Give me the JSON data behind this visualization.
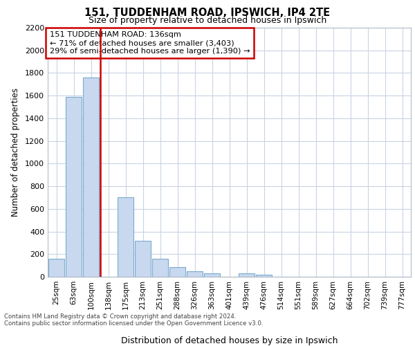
{
  "title1": "151, TUDDENHAM ROAD, IPSWICH, IP4 2TE",
  "title2": "Size of property relative to detached houses in Ipswich",
  "xlabel": "Distribution of detached houses by size in Ipswich",
  "ylabel": "Number of detached properties",
  "categories": [
    "25sqm",
    "63sqm",
    "100sqm",
    "138sqm",
    "175sqm",
    "213sqm",
    "251sqm",
    "288sqm",
    "326sqm",
    "363sqm",
    "401sqm",
    "439sqm",
    "476sqm",
    "514sqm",
    "551sqm",
    "589sqm",
    "627sqm",
    "664sqm",
    "702sqm",
    "739sqm",
    "777sqm"
  ],
  "values": [
    160,
    1590,
    1760,
    0,
    700,
    320,
    160,
    85,
    50,
    30,
    0,
    30,
    20,
    0,
    0,
    0,
    0,
    0,
    0,
    0,
    0
  ],
  "bar_color": "#c8d8ee",
  "bar_edge_color": "#7aaad0",
  "marker_index": 3,
  "marker_color": "#cc0000",
  "ylim": [
    0,
    2200
  ],
  "yticks": [
    0,
    200,
    400,
    600,
    800,
    1000,
    1200,
    1400,
    1600,
    1800,
    2000,
    2200
  ],
  "annotation_text": "151 TUDDENHAM ROAD: 136sqm\n← 71% of detached houses are smaller (3,403)\n29% of semi-detached houses are larger (1,390) →",
  "footnote1": "Contains HM Land Registry data © Crown copyright and database right 2024.",
  "footnote2": "Contains public sector information licensed under the Open Government Licence v3.0.",
  "bg_color": "#ffffff",
  "plot_bg_color": "#ffffff",
  "grid_color": "#c8d4e4"
}
